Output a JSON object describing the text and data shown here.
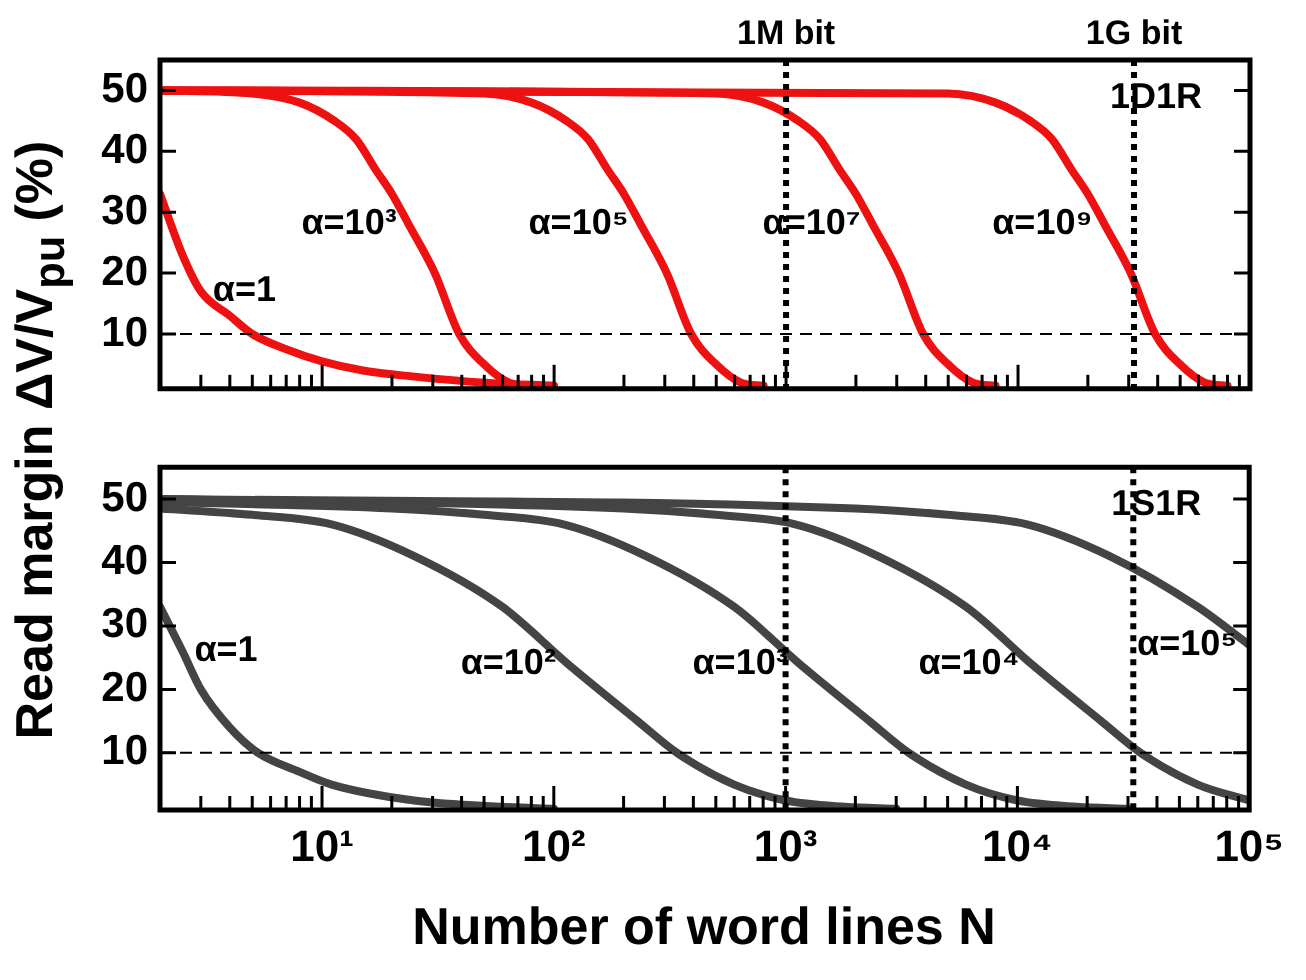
{
  "chart_data": [
    {
      "type": "line",
      "ylabel": "Read margin ΔV/V$_{pu}$ (%)",
      "log": "x",
      "grid": false,
      "legend": false,
      "tick_labels": "y",
      "line_style": "solid",
      "marker": "none",
      "xlim": [
        2,
        100000
      ],
      "ylim": [
        1,
        55
      ],
      "xticks": [
        {
          "value": 2,
          "label": null
        },
        {
          "value": 3,
          "label": null
        },
        {
          "value": 4,
          "label": null
        },
        {
          "value": 5,
          "label": null
        },
        {
          "value": 6,
          "label": null
        },
        {
          "value": 7,
          "label": null
        },
        {
          "value": 8,
          "label": null
        },
        {
          "value": 9,
          "label": null
        },
        {
          "value": 10,
          "label": null
        },
        {
          "value": 20,
          "label": null
        },
        {
          "value": 30,
          "label": null
        },
        {
          "value": 40,
          "label": null
        },
        {
          "value": 50,
          "label": null
        },
        {
          "value": 60,
          "label": null
        },
        {
          "value": 70,
          "label": null
        },
        {
          "value": 80,
          "label": null
        },
        {
          "value": 90,
          "label": null
        },
        {
          "value": 100,
          "label": null
        },
        {
          "value": 200,
          "label": null
        },
        {
          "value": 300,
          "label": null
        },
        {
          "value": 400,
          "label": null
        },
        {
          "value": 500,
          "label": null
        },
        {
          "value": 600,
          "label": null
        },
        {
          "value": 700,
          "label": null
        },
        {
          "value": 800,
          "label": null
        },
        {
          "value": 900,
          "label": null
        },
        {
          "value": 1000,
          "label": null
        },
        {
          "value": 2000,
          "label": null
        },
        {
          "value": 3000,
          "label": null
        },
        {
          "value": 4000,
          "label": null
        },
        {
          "value": 5000,
          "label": null
        },
        {
          "value": 6000,
          "label": null
        },
        {
          "value": 7000,
          "label": null
        },
        {
          "value": 8000,
          "label": null
        },
        {
          "value": 9000,
          "label": null
        },
        {
          "value": 10000,
          "label": null
        },
        {
          "value": 20000,
          "label": null
        },
        {
          "value": 30000,
          "label": null
        },
        {
          "value": 40000,
          "label": null
        },
        {
          "value": 50000,
          "label": null
        },
        {
          "value": 60000,
          "label": null
        },
        {
          "value": 70000,
          "label": null
        },
        {
          "value": 80000,
          "label": null
        },
        {
          "value": 90000,
          "label": null
        },
        {
          "value": 100000,
          "label": null
        }
      ],
      "yticks": [
        10,
        20,
        30,
        40,
        50
      ],
      "series": [
        {
          "color": "#ee1111",
          "x": [
            2,
            2.5,
            3,
            4,
            5,
            7,
            10,
            15,
            25,
            50,
            100
          ],
          "values": [
            33,
            23,
            17,
            13,
            10,
            7.5,
            5.5,
            4,
            3,
            2,
            1.5
          ]
        },
        {
          "color": "#ee1111",
          "x": [
            2,
            5,
            8,
            11.3,
            14,
            17,
            20,
            23.6,
            30.6,
            39,
            50,
            64,
            80
          ],
          "values": [
            50,
            49.5,
            48,
            45,
            42,
            37,
            33,
            28,
            20,
            10,
            5,
            2,
            1.5
          ]
        },
        {
          "color": "#ee1111",
          "x": [
            2,
            50,
            80,
            113,
            140,
            170,
            200,
            236,
            306,
            390,
            500,
            640,
            800
          ],
          "values": [
            50,
            49.5,
            48,
            45,
            42,
            37,
            33,
            28,
            20,
            10,
            5,
            2,
            1.5
          ]
        },
        {
          "color": "#ee1111",
          "x": [
            2,
            500,
            800,
            1130,
            1400,
            1700,
            2000,
            2360,
            3060,
            3900,
            5000,
            6400,
            8000
          ],
          "values": [
            50,
            49.5,
            48,
            45,
            42,
            37,
            33,
            28,
            20,
            10,
            5,
            2,
            1.5
          ]
        },
        {
          "color": "#ee1111",
          "x": [
            2,
            5000,
            8000,
            11300,
            14000,
            17000,
            20000,
            23600,
            30600,
            39000,
            50000,
            64000,
            80000
          ],
          "values": [
            50,
            49.5,
            48,
            45,
            42,
            37,
            33,
            28,
            20,
            10,
            5,
            2,
            1.5
          ]
        }
      ],
      "ref_lines": [
        {
          "axis": "x",
          "value": 1000,
          "label": "1M bit",
          "line_style": "dotted",
          "color": "#000000"
        },
        {
          "axis": "x",
          "value": 31623,
          "label": "1G bit",
          "line_style": "dotted",
          "color": "#000000"
        },
        {
          "axis": "y",
          "value": 10,
          "line_style": "dashed",
          "color": "#000000"
        }
      ],
      "annotations": [
        "1D1R",
        {
          "text": "α=1",
          "x": 3,
          "y": 17
        },
        {
          "text": "α=10³",
          "x": 23.6,
          "y": 28
        },
        {
          "text": "α=10⁵",
          "x": 236,
          "y": 28
        },
        {
          "text": "α=10⁷",
          "x": 2360,
          "y": 28
        },
        {
          "text": "α=10⁹",
          "x": 23600,
          "y": 28
        }
      ]
    },
    {
      "type": "line",
      "xlabel": "Number of word lines N",
      "log": "x",
      "grid": false,
      "legend": false,
      "line_style": "solid",
      "marker": "none",
      "xlim": [
        2,
        100000
      ],
      "ylim": [
        1,
        55
      ],
      "xticks": [
        {
          "value": 2,
          "label": null
        },
        {
          "value": 3,
          "label": null
        },
        {
          "value": 4,
          "label": null
        },
        {
          "value": 5,
          "label": null
        },
        {
          "value": 6,
          "label": null
        },
        {
          "value": 7,
          "label": null
        },
        {
          "value": 8,
          "label": null
        },
        {
          "value": 9,
          "label": null
        },
        {
          "value": 10,
          "label": "10¹"
        },
        {
          "value": 20,
          "label": null
        },
        {
          "value": 30,
          "label": null
        },
        {
          "value": 40,
          "label": null
        },
        {
          "value": 50,
          "label": null
        },
        {
          "value": 60,
          "label": null
        },
        {
          "value": 70,
          "label": null
        },
        {
          "value": 80,
          "label": null
        },
        {
          "value": 90,
          "label": null
        },
        {
          "value": 100,
          "label": "10²"
        },
        {
          "value": 200,
          "label": null
        },
        {
          "value": 300,
          "label": null
        },
        {
          "value": 400,
          "label": null
        },
        {
          "value": 500,
          "label": null
        },
        {
          "value": 600,
          "label": null
        },
        {
          "value": 700,
          "label": null
        },
        {
          "value": 800,
          "label": null
        },
        {
          "value": 900,
          "label": null
        },
        {
          "value": 1000,
          "label": "10³"
        },
        {
          "value": 2000,
          "label": null
        },
        {
          "value": 3000,
          "label": null
        },
        {
          "value": 4000,
          "label": null
        },
        {
          "value": 5000,
          "label": null
        },
        {
          "value": 6000,
          "label": null
        },
        {
          "value": 7000,
          "label": null
        },
        {
          "value": 8000,
          "label": null
        },
        {
          "value": 9000,
          "label": null
        },
        {
          "value": 10000,
          "label": "10⁴"
        },
        {
          "value": 20000,
          "label": null
        },
        {
          "value": 30000,
          "label": null
        },
        {
          "value": 40000,
          "label": null
        },
        {
          "value": 50000,
          "label": null
        },
        {
          "value": 60000,
          "label": null
        },
        {
          "value": 70000,
          "label": null
        },
        {
          "value": 80000,
          "label": null
        },
        {
          "value": 90000,
          "label": null
        },
        {
          "value": 100000,
          "label": "10⁵"
        }
      ],
      "yticks": [
        10,
        20,
        30,
        40,
        50
      ],
      "series": [
        {
          "color": "#444444",
          "x": [
            2,
            2.5,
            3,
            4,
            5.3,
            8,
            11,
            25,
            60,
            100
          ],
          "values": [
            33,
            26,
            20,
            14,
            10,
            7,
            5,
            2.5,
            1.5,
            1.2
          ]
        },
        {
          "color": "#444444",
          "x": [
            2,
            5,
            11,
            25,
            60,
            115,
            230,
            340,
            600,
            1000,
            1800,
            3000
          ],
          "values": [
            48.5,
            47.5,
            46,
            41,
            33,
            24,
            15,
            10,
            5,
            2.5,
            1.5,
            1.2
          ]
        },
        {
          "color": "#444444",
          "x": [
            2,
            20,
            50,
            110,
            250,
            600,
            1150,
            2300,
            3400,
            6000,
            10000,
            18000,
            30000
          ],
          "values": [
            49.5,
            48.5,
            47.5,
            46,
            41,
            33,
            24,
            15,
            10,
            5,
            2.5,
            1.5,
            1.2
          ]
        },
        {
          "color": "#444444",
          "x": [
            2,
            200,
            500,
            1100,
            2500,
            6000,
            11500,
            23000,
            34000,
            60000,
            100000
          ],
          "values": [
            50,
            48.5,
            47.5,
            46,
            41,
            33,
            24,
            15,
            10,
            5,
            2.5
          ]
        },
        {
          "color": "#444444",
          "x": [
            2,
            2000,
            5000,
            11000,
            25000,
            60000,
            100000
          ],
          "values": [
            50,
            48.5,
            47.5,
            46,
            41,
            33,
            27
          ]
        }
      ],
      "ref_lines": [
        {
          "axis": "x",
          "value": 1000,
          "line_style": "dotted",
          "color": "#000000"
        },
        {
          "axis": "x",
          "value": 31623,
          "line_style": "dotted",
          "color": "#000000"
        },
        {
          "axis": "y",
          "value": 10,
          "line_style": "dashed",
          "color": "#000000"
        }
      ],
      "annotations": [
        "1S1R",
        {
          "text": "α=1",
          "x": 2.5,
          "y": 26
        },
        {
          "text": "α=10²",
          "x": 115,
          "y": 24
        },
        {
          "text": "α=10³",
          "x": 1150,
          "y": 24
        },
        {
          "text": "α=10⁴",
          "x": 11500,
          "y": 24
        },
        {
          "text": "α=10⁵",
          "x": 100000,
          "y": 27
        }
      ]
    }
  ]
}
